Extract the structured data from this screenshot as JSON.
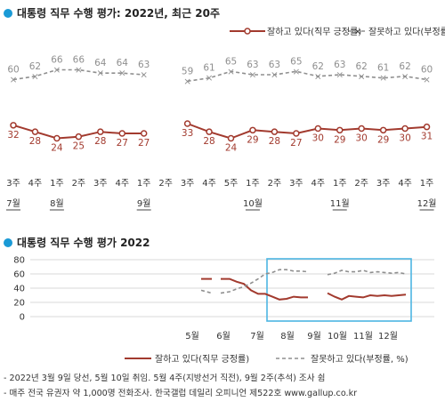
{
  "top_title": "대통령 직무 수행 평가: 2022년, 최근 20주",
  "bottom_title": "대통령 직무 수행 평가 2022",
  "colors": {
    "approve": "#a23a2e",
    "disapprove": "#8f8f8f",
    "accent": "#1a9ad6",
    "highlight": "#4db6e3",
    "grid": "#d9d9d9"
  },
  "legend": {
    "approve": "잘하고 있다(직무 긍정률)",
    "disapprove": "잘못하고 있다(부정률, %)",
    "approve_bottom": "잘하고 있다(직무 긍정률)",
    "disapprove_bottom": "잘못하고 있다(부정률, %)"
  },
  "notes": [
    "- 2022년 3월 9일 당선, 5월 10일 취임. 5월 4주(지방선거 직전), 9월 2주(추석) 조사 쉼",
    "- 매주 전국 유권자 약 1,000명 전화조사. 한국갤럽 데일리 오피니언 제522호 www.gallup.co.kr"
  ],
  "chart_data": [
    {
      "type": "line",
      "title": "대통령 직무 수행 평가: 2022년, 최근 20주",
      "categories": [
        "3주",
        "4주",
        "1주",
        "2주",
        "3주",
        "4주",
        "1주",
        "2주",
        "3주",
        "4주",
        "5주",
        "1주",
        "2주",
        "3주",
        "4주",
        "1주",
        "2주",
        "3주",
        "4주",
        "1주"
      ],
      "month_labels": [
        {
          "index": 0,
          "label": "7월"
        },
        {
          "index": 2,
          "label": "8월"
        },
        {
          "index": 6,
          "label": "9월"
        },
        {
          "index": 11,
          "label": "10월"
        },
        {
          "index": 15,
          "label": "11월"
        },
        {
          "index": 19,
          "label": "12월"
        }
      ],
      "series": [
        {
          "name": "잘하고 있다(직무 긍정률)",
          "values": [
            32,
            28,
            24,
            25,
            28,
            27,
            27,
            null,
            33,
            28,
            24,
            29,
            28,
            27,
            30,
            29,
            30,
            29,
            30,
            31
          ]
        },
        {
          "name": "잘못하고 있다(부정률, %)",
          "values": [
            60,
            62,
            66,
            66,
            64,
            64,
            63,
            null,
            59,
            61,
            65,
            63,
            63,
            65,
            62,
            63,
            62,
            61,
            62,
            60
          ]
        }
      ],
      "ylim": [
        15,
        75
      ]
    },
    {
      "type": "line",
      "title": "대통령 직무 수행 평가 2022",
      "x_labels": [
        "5월",
        "6월",
        "7월",
        "8월",
        "9월",
        "10월",
        "11월",
        "12월"
      ],
      "yticks": [
        0,
        20,
        40,
        60,
        80
      ],
      "ylim": [
        0,
        80
      ],
      "highlight_range": [
        "7월",
        "12월"
      ],
      "series": [
        {
          "name": "잘하고 있다(직무 긍정률)",
          "segments": [
            [
              53,
              53
            ],
            [
              53,
              53,
              49,
              46,
              37,
              32,
              32,
              28,
              24,
              25,
              28,
              27,
              27
            ],
            [
              33,
              28,
              24,
              29,
              28,
              27,
              30,
              29,
              30,
              29,
              30,
              31
            ]
          ]
        },
        {
          "name": "잘못하고 있다(부정률, %)",
          "segments": [
            [
              37,
              33
            ],
            [
              33,
              35,
              39,
              42,
              47,
              53,
              60,
              62,
              66,
              66,
              64,
              64,
              63
            ],
            [
              59,
              61,
              65,
              63,
              63,
              65,
              62,
              63,
              62,
              61,
              62,
              60
            ]
          ]
        }
      ]
    }
  ]
}
